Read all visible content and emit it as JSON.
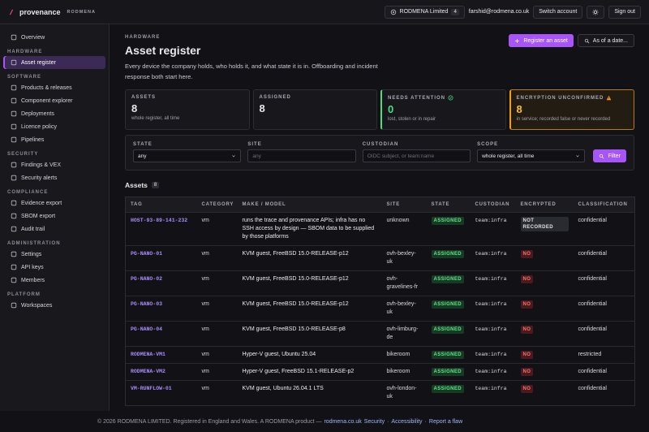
{
  "header": {
    "brand": "provenance",
    "org": "RODMENA",
    "org_switch": "RODMENA Limited",
    "org_count": "4",
    "email": "farshid@rodmena.co.uk",
    "switch_account": "Switch account",
    "sign_out": "Sign out"
  },
  "sidebar": {
    "top": [
      "Overview"
    ],
    "sections": [
      {
        "title": "HARDWARE",
        "items": [
          {
            "label": "Asset register",
            "active": true
          }
        ]
      },
      {
        "title": "SOFTWARE",
        "items": [
          "Products & releases",
          "Component explorer",
          "Deployments",
          "Licence policy",
          "Pipelines"
        ]
      },
      {
        "title": "SECURITY",
        "items": [
          "Findings & VEX",
          "Security alerts"
        ]
      },
      {
        "title": "COMPLIANCE",
        "items": [
          "Evidence export",
          "SBOM export",
          "Audit trail"
        ]
      },
      {
        "title": "ADMINISTRATION",
        "items": [
          "Settings",
          "API keys",
          "Members"
        ]
      },
      {
        "title": "PLATFORM",
        "items": [
          "Workspaces"
        ]
      }
    ]
  },
  "page": {
    "eyebrow": "HARDWARE",
    "title": "Asset register",
    "description": "Every device the company holds, who holds it, and what state it is in. Offboarding and incident response both start here.",
    "actions": [
      "Register an asset",
      "As of a date..."
    ]
  },
  "stats": [
    {
      "label": "ASSETS",
      "value": 8,
      "note": "whole register, all time",
      "tone": "plain"
    },
    {
      "label": "ASSIGNED",
      "value": 8,
      "note": "",
      "tone": "plain"
    },
    {
      "label": "NEEDS ATTENTION",
      "value": 0,
      "note": "lost, stolen or in repair",
      "tone": "ok"
    },
    {
      "label": "ENCRYPTION UNCONFIRMED",
      "value": 8,
      "note": "in service; recorded false or never recorded",
      "tone": "warn"
    }
  ],
  "filters": {
    "fields": [
      {
        "label": "STATE",
        "kind": "select",
        "value": "any"
      },
      {
        "label": "SITE",
        "kind": "input",
        "placeholder": "any"
      },
      {
        "label": "CUSTODIAN",
        "kind": "input",
        "placeholder": "OIDC subject, or team:name"
      },
      {
        "label": "SCOPE",
        "kind": "select",
        "value": "whole register, all time"
      }
    ],
    "button": "Filter"
  },
  "table": {
    "heading": "Assets",
    "count": "8",
    "columns": [
      "TAG",
      "CATEGORY",
      "MAKE / MODEL",
      "SITE",
      "STATE",
      "CUSTODIAN",
      "ENCRYPTED",
      "CLASSIFICATION"
    ],
    "rows": [
      [
        "HOST-93-89-141-232",
        "vm",
        "runs the trace and provenance APIs; infra has no SSH access by design — SBOM data to be supplied by those platforms",
        "unknown",
        "ASSIGNED",
        "team:infra",
        "NOT RECORDED",
        "confidential"
      ],
      [
        "PG-NANO-01",
        "vm",
        "KVM guest, FreeBSD 15.0-RELEASE-p12",
        "ovh-bexley-uk",
        "ASSIGNED",
        "team:infra",
        "NO",
        "confidential"
      ],
      [
        "PG-NANO-02",
        "vm",
        "KVM guest, FreeBSD 15.0-RELEASE-p12",
        "ovh-gravelines-fr",
        "ASSIGNED",
        "team:infra",
        "NO",
        "confidential"
      ],
      [
        "PG-NANO-03",
        "vm",
        "KVM guest, FreeBSD 15.0-RELEASE-p12",
        "ovh-bexley-uk",
        "ASSIGNED",
        "team:infra",
        "NO",
        "confidential"
      ],
      [
        "PG-NANO-04",
        "vm",
        "KVM guest, FreeBSD 15.0-RELEASE-p8",
        "ovh-limburg-de",
        "ASSIGNED",
        "team:infra",
        "NO",
        "confidential"
      ],
      [
        "RODMENA-VM1",
        "vm",
        "Hyper-V guest, Ubuntu 25.04",
        "bikeroom",
        "ASSIGNED",
        "team:infra",
        "NO",
        "restricted"
      ],
      [
        "RODMENA-VM2",
        "vm",
        "Hyper-V guest, FreeBSD 15.1-RELEASE-p2",
        "bikeroom",
        "ASSIGNED",
        "team:infra",
        "NO",
        "confidential"
      ],
      [
        "VM-RUNFLOW-01",
        "vm",
        "KVM guest, Ubuntu 26.04.1 LTS",
        "ovh-london-uk",
        "ASSIGNED",
        "team:infra",
        "NO",
        "confidential"
      ]
    ]
  },
  "footer": {
    "text": "© 2026 RODMENA LIMITED. Registered in England and Wales. A RODMENA product —",
    "links": [
      "rodmena.co.uk",
      "Security",
      "Accessibility",
      "Report a flaw"
    ],
    "separator": "·"
  }
}
